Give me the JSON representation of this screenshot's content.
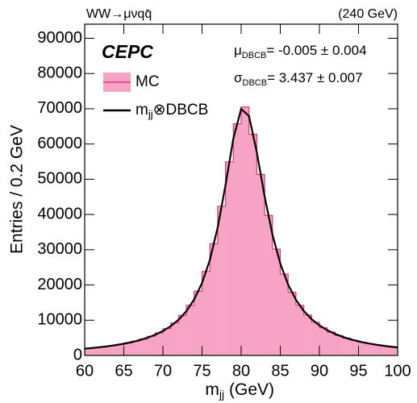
{
  "chart_data": {
    "type": "histogram",
    "process": "WW→μνqq̄",
    "energy": "(240 GeV)",
    "experiment": "CEPC",
    "y_label": "Entries / 0.2 GeV",
    "x_label": {
      "base": "m",
      "sub": "jj",
      "rest": " (GeV)"
    },
    "annotations": [
      {
        "symbol": "μ",
        "sub": "DBCB",
        "text": "= -0.005 ± 0.004"
      },
      {
        "symbol": "σ",
        "sub": "DBCB",
        "text": "=  3.437 ± 0.007"
      }
    ],
    "xlim": [
      60,
      100
    ],
    "xticks": [
      60,
      65,
      70,
      75,
      80,
      85,
      90,
      95,
      100
    ],
    "ylim": [
      0,
      94000
    ],
    "yticks": [
      0,
      10000,
      20000,
      30000,
      40000,
      50000,
      60000,
      70000,
      80000,
      90000
    ],
    "series": [
      {
        "name": "MC",
        "type": "histogram",
        "color": "#f7a3c5",
        "edge_color": "#d93a70",
        "bins": [
          60,
          61,
          62,
          63,
          64,
          65,
          66,
          67,
          68,
          69,
          70,
          71,
          72,
          73,
          74,
          75,
          76,
          77,
          78,
          79,
          80,
          81,
          82,
          83,
          84,
          85,
          86,
          87,
          88,
          89,
          90,
          91,
          92,
          93,
          94,
          95,
          96,
          97,
          98,
          99,
          100
        ],
        "values": [
          2020,
          2236,
          2486,
          2780,
          3129,
          3545,
          4048,
          4664,
          5427,
          6388,
          7619,
          9221,
          11348,
          14240,
          18234,
          23834,
          31708,
          42328,
          54936,
          65736,
          70500,
          62788,
          51382,
          39705,
          30181,
          23087,
          17948,
          14219,
          11476,
          9421,
          7853,
          6635,
          5670,
          4898,
          4272,
          3756,
          3326,
          2966,
          2659,
          2399
        ]
      },
      {
        "name": {
          "base": "m",
          "sub": "jj",
          "rest": "⊗DBCB"
        },
        "type": "line",
        "color": "#000000",
        "x": [
          60,
          61,
          62,
          63,
          64,
          65,
          66,
          67,
          68,
          69,
          70,
          71,
          72,
          73,
          74,
          75,
          76,
          77,
          78,
          79,
          80,
          81,
          82,
          83,
          84,
          85,
          86,
          87,
          88,
          89,
          90,
          91,
          92,
          93,
          94,
          95,
          96,
          97,
          98,
          99,
          100
        ],
        "values": [
          1925,
          2120,
          2352,
          2620,
          2940,
          3318,
          3772,
          4325,
          5004,
          5851,
          6925,
          8313,
          10129,
          12567,
          15914,
          20554,
          27115,
          36302,
          48354,
          61518,
          69955,
          67932,
          57645,
          45120,
          34290,
          26072,
          20103,
          15793,
          12646,
          10307,
          8535,
          7172,
          6099,
          5242,
          4554,
          3990,
          3522,
          3131,
          2801,
          2518,
          2280
        ]
      }
    ]
  }
}
